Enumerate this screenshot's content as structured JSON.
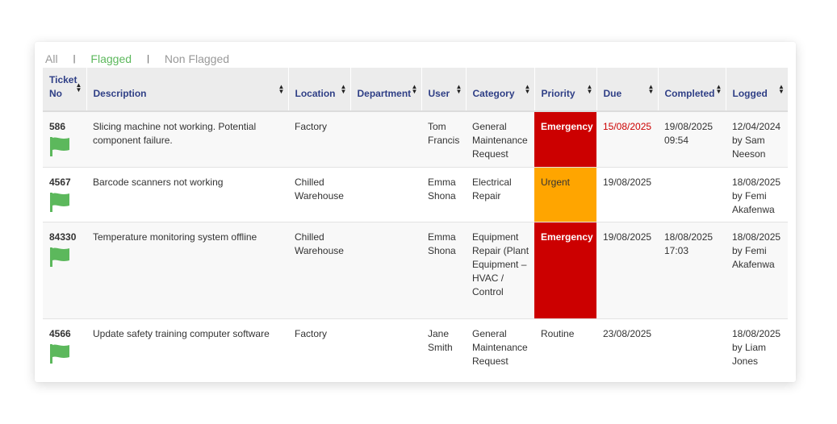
{
  "filters": {
    "all": "All",
    "flagged": "Flagged",
    "non_flagged": "Non Flagged",
    "separator": "|"
  },
  "colors": {
    "emergency": "#cc0000",
    "urgent": "#ffa500",
    "flag": "#5cb85c",
    "header_text": "#2f3f86",
    "overdue": "#cc0000"
  },
  "columns": {
    "ticket_no": "Ticket No",
    "description": "Description",
    "location": "Location",
    "department": "Department",
    "user": "User",
    "category": "Category",
    "priority": "Priority",
    "due": "Due",
    "completed": "Completed",
    "logged": "Logged"
  },
  "rows": [
    {
      "ticket_no": "586",
      "flag_icon": "flag-icon",
      "description": "Slicing machine not working. Potential component failure.",
      "location": "Factory",
      "department": "",
      "user": "Tom Francis",
      "category": "General Maintenance Request",
      "priority": "Emergency",
      "due": "15/08/2025",
      "completed": "19/08/2025 09:54",
      "logged": "12/04/2024 by Sam Neeson"
    },
    {
      "ticket_no": "4567",
      "flag_icon": "flag-icon",
      "description": "Barcode scanners not working",
      "location": "Chilled Warehouse",
      "department": "",
      "user": "Emma Shona",
      "category": "Electrical Repair",
      "priority": "Urgent",
      "due": "19/08/2025",
      "completed": "",
      "logged": "18/08/2025 by Femi Akafenwa"
    },
    {
      "ticket_no": "84330",
      "flag_icon": "flag-icon",
      "description": "Temperature monitoring system offline",
      "location": "Chilled Warehouse",
      "department": "",
      "user": "Emma Shona",
      "category": "Equipment Repair (Plant Equipment – HVAC / Control",
      "priority": "Emergency",
      "due": "19/08/2025",
      "completed": "18/08/2025 17:03",
      "logged": "18/08/2025 by Femi Akafenwa"
    },
    {
      "ticket_no": "4566",
      "flag_icon": "flag-icon",
      "description": "Update safety training computer software",
      "location": "Factory",
      "department": "",
      "user": "Jane Smith",
      "category": "General Maintenance Request",
      "priority": "Routine",
      "due": "23/08/2025",
      "completed": "",
      "logged": "18/08/2025 by Liam Jones"
    }
  ]
}
